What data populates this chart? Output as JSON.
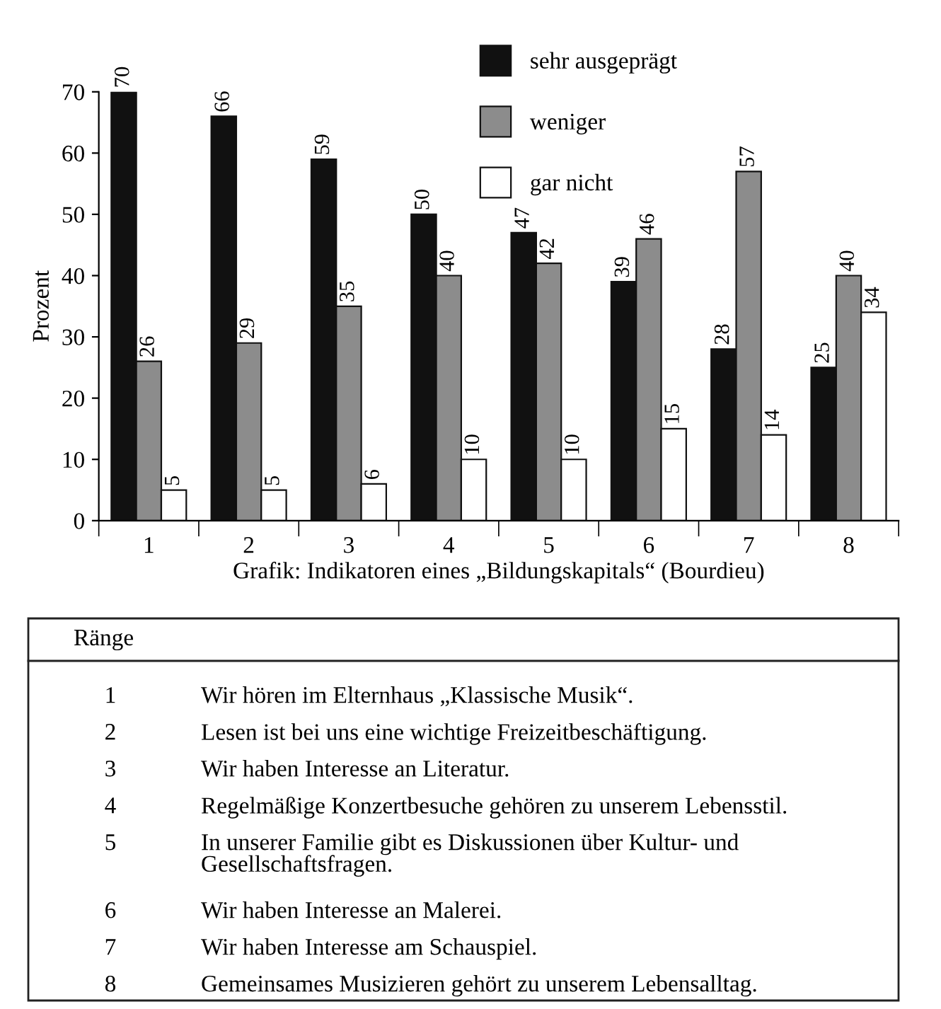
{
  "chart_data": {
    "type": "bar",
    "ylabel": "Prozent",
    "xlabel": "Grafik: Indikatoren eines „Bildungskapitals“ (Bourdieu)",
    "categories": [
      "1",
      "2",
      "3",
      "4",
      "5",
      "6",
      "7",
      "8"
    ],
    "series": [
      {
        "name": "sehr ausgeprägt",
        "color": "#111111",
        "values": [
          70,
          66,
          59,
          50,
          47,
          39,
          28,
          25
        ]
      },
      {
        "name": "weniger",
        "color": "#8c8c8c",
        "values": [
          26,
          29,
          35,
          40,
          42,
          46,
          57,
          40
        ]
      },
      {
        "name": "gar nicht",
        "color": "#ffffff",
        "values": [
          5,
          5,
          6,
          10,
          10,
          15,
          14,
          34
        ]
      }
    ],
    "ylim": [
      0,
      70
    ],
    "yticks": [
      0,
      10,
      20,
      30,
      40,
      50,
      60,
      70
    ],
    "grid": false,
    "legend": "top",
    "data_labels": true,
    "annotations": [
      "Ränge",
      "1",
      "Wir hören im Elternhaus „Klassische Musik“.",
      "2",
      "Lesen ist bei uns eine wichtige Freizeitbeschäftigung.",
      "3",
      "Wir haben Interesse an Literatur.",
      "4",
      "Regelmäßige Konzertbesuche gehören zu unserem Lebensstil.",
      "5",
      "In unserer Familie gibt es Diskussionen über Kultur- und\nGesellschaftsfragen.",
      "6",
      "Wir haben Interesse an Malerei.",
      "7",
      "Wir haben Interesse am Schauspiel.",
      "8",
      "Gemeinsames Musizieren gehört zu unserem Lebensalltag."
    ]
  }
}
